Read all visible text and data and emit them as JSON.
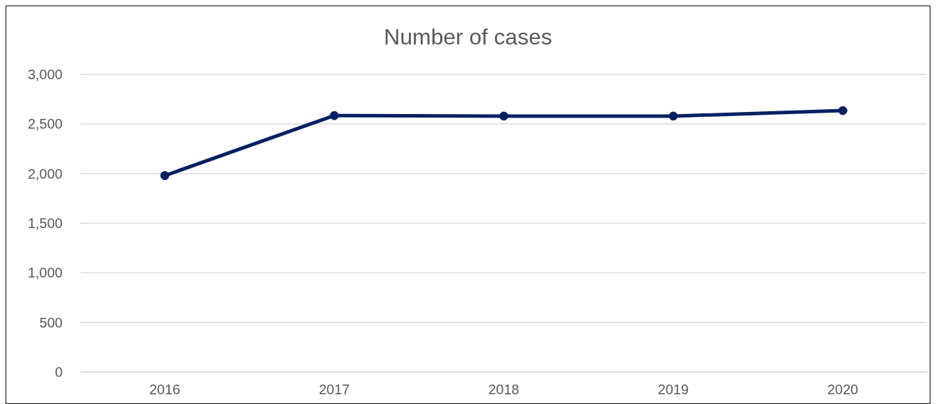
{
  "chart_data": {
    "type": "line",
    "title": "Number of cases",
    "categories": [
      "2016",
      "2017",
      "2018",
      "2019",
      "2020"
    ],
    "series": [
      {
        "color": "#002060",
        "values": [
          1980,
          2585,
          2580,
          2580,
          2635
        ]
      }
    ],
    "ylim": [
      0,
      3000
    ],
    "yticks": [
      {
        "value": 0,
        "label": "0"
      },
      {
        "value": 500,
        "label": "500"
      },
      {
        "value": 1000,
        "label": "1,000"
      },
      {
        "value": 1500,
        "label": "1,500"
      },
      {
        "value": 2000,
        "label": "2,000"
      },
      {
        "value": 2500,
        "label": "2,500"
      },
      {
        "value": 3000,
        "label": "3,000"
      }
    ],
    "grid": "y",
    "marker": "circle",
    "line_style": "solid"
  }
}
